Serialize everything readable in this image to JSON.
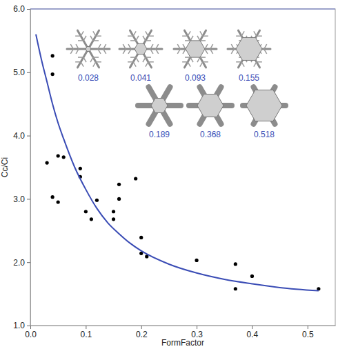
{
  "chart_data": {
    "type": "scatter",
    "x_label": "FormFactor",
    "y_label": "Cc/Ci",
    "xlim": [
      0,
      0.55
    ],
    "ylim": [
      1,
      6
    ],
    "xticks": [
      {
        "value": 0,
        "label": "0.0"
      },
      0.1,
      0.2,
      0.3,
      0.4,
      0.5
    ],
    "yticks": [
      {
        "value": 1,
        "label": "1.0"
      },
      {
        "value": 2,
        "label": "2.0"
      },
      {
        "value": 3,
        "label": "3.0"
      },
      {
        "value": 4,
        "label": "4.0"
      },
      {
        "value": 5,
        "label": "5.0"
      },
      {
        "value": 6,
        "label": "6.0"
      }
    ],
    "grid": false,
    "annotations": [
      "0.028",
      "0.041",
      "0.093",
      "0.155",
      "0.189",
      "0.368",
      "0.518"
    ],
    "series": [
      {
        "type": "scatter",
        "color": "#000000",
        "marker": "circle",
        "x": [
          0.03,
          0.04,
          0.04,
          0.04,
          0.05,
          0.05,
          0.06,
          0.09,
          0.09,
          0.1,
          0.11,
          0.12,
          0.15,
          0.15,
          0.16,
          0.16,
          0.19,
          0.2,
          0.2,
          0.21,
          0.3,
          0.37,
          0.37,
          0.4,
          0.52
        ],
        "values": [
          3.57,
          5.26,
          4.97,
          3.03,
          2.95,
          3.68,
          3.66,
          3.48,
          3.35,
          2.8,
          2.68,
          2.98,
          2.8,
          2.68,
          3.23,
          3.0,
          3.32,
          2.39,
          2.14,
          2.09,
          2.03,
          1.97,
          1.58,
          1.78,
          1.58
        ]
      },
      {
        "type": "line",
        "color": "#3a4cb5",
        "line_style": "solid",
        "x": [
          0.01,
          0.02,
          0.03,
          0.04,
          0.05,
          0.06,
          0.08,
          0.1,
          0.12,
          0.14,
          0.16,
          0.18,
          0.2,
          0.25,
          0.3,
          0.35,
          0.4,
          0.45,
          0.52
        ],
        "values": [
          5.6,
          5.2,
          4.85,
          4.5,
          4.2,
          3.95,
          3.5,
          3.15,
          2.85,
          2.62,
          2.45,
          2.3,
          2.18,
          1.97,
          1.83,
          1.73,
          1.66,
          1.6,
          1.55
        ]
      }
    ]
  }
}
